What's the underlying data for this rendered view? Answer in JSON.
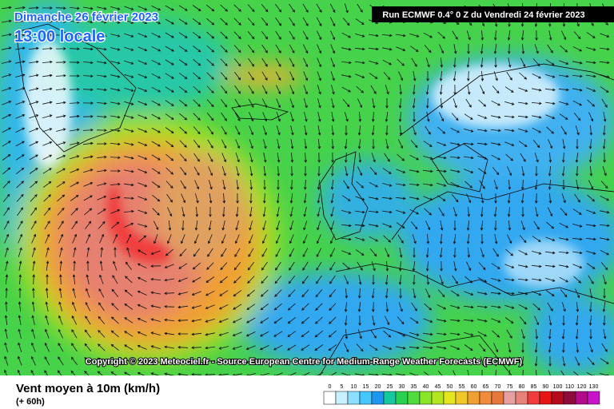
{
  "header": {
    "date": "Dimanche 26 février 2023",
    "time": "13:00 locale",
    "run": "Run ECMWF 0.4° 0 Z du Vendredi 24 février 2023"
  },
  "copyright": "Copyright © 2023 Meteociel.fr - Source European Centre for Medium-Range Weather Forecasts (ECMWF)",
  "footer": {
    "title": "Vent moyen à 10m (km/h)",
    "lead": "(+ 60h)"
  },
  "legend": {
    "values": [
      0,
      5,
      10,
      15,
      20,
      25,
      30,
      35,
      40,
      45,
      50,
      55,
      60,
      65,
      70,
      75,
      80,
      85,
      90,
      100,
      110,
      120,
      130
    ],
    "colors": [
      "#ffffff",
      "#c8f0ff",
      "#8ce0ff",
      "#46c8ff",
      "#1e96f0",
      "#14c8a0",
      "#28d250",
      "#50dc3c",
      "#8ce628",
      "#b4e61e",
      "#e6e61e",
      "#f0c828",
      "#f0a032",
      "#f08c3c",
      "#e6783c",
      "#e6a0a0",
      "#e68278",
      "#f03c3c",
      "#e61414",
      "#b40a1e",
      "#8c0a3c",
      "#b40a8c",
      "#c814c8"
    ]
  }
}
